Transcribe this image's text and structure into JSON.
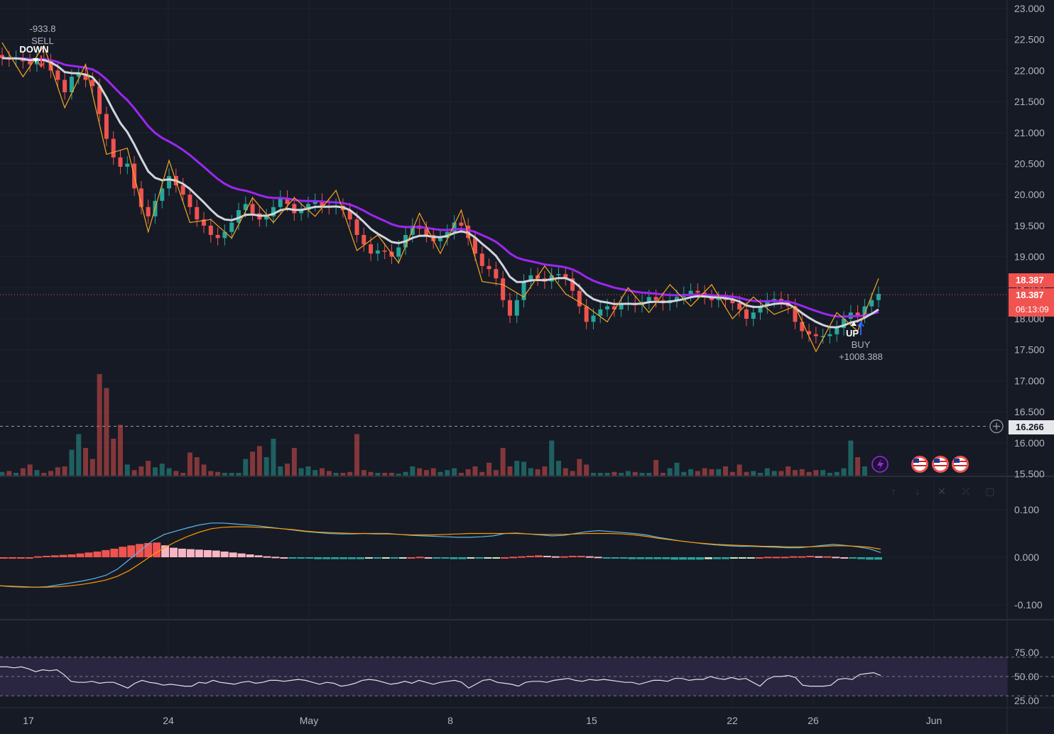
{
  "chart_data": [
    {
      "type": "candlestick",
      "title": "",
      "x_tick_labels": [
        "17",
        "24",
        "May",
        "8",
        "15",
        "22",
        "26",
        "Jun"
      ],
      "y_tick_labels": [
        "23.000",
        "22.500",
        "22.000",
        "21.500",
        "21.000",
        "20.500",
        "20.000",
        "19.500",
        "19.000",
        "18.500",
        "18.000",
        "17.500",
        "17.000",
        "16.500",
        "16.000",
        "15.500"
      ],
      "ylim": [
        15.5,
        23.0
      ],
      "last_price": "18.387",
      "last_price_repeat": "18.387",
      "countdown": "06:13:09",
      "crosshair_price": "16.266",
      "closes": [
        22.2,
        22.18,
        22.2,
        22.15,
        22.1,
        22.2,
        22.15,
        22.0,
        21.85,
        21.65,
        21.9,
        21.95,
        21.85,
        21.75,
        21.3,
        20.9,
        20.6,
        20.45,
        20.5,
        20.1,
        19.8,
        19.65,
        19.9,
        20.1,
        20.3,
        20.15,
        20.0,
        19.8,
        19.6,
        19.5,
        19.35,
        19.3,
        19.4,
        19.55,
        19.75,
        19.85,
        19.7,
        19.6,
        19.65,
        19.8,
        19.95,
        19.85,
        19.7,
        19.75,
        19.85,
        19.9,
        19.82,
        19.8,
        19.82,
        19.75,
        19.6,
        19.35,
        19.2,
        19.05,
        19.1,
        19.08,
        19.0,
        19.15,
        19.35,
        19.5,
        19.45,
        19.35,
        19.25,
        19.3,
        19.4,
        19.55,
        19.5,
        19.3,
        19.05,
        18.85,
        18.8,
        18.65,
        18.3,
        18.05,
        18.3,
        18.6,
        18.7,
        18.65,
        18.6,
        18.7,
        18.72,
        18.65,
        18.45,
        18.2,
        17.95,
        18.05,
        18.15,
        18.2,
        18.15,
        18.25,
        18.25,
        18.22,
        18.27,
        18.35,
        18.3,
        18.25,
        18.3,
        18.35,
        18.4,
        18.45,
        18.42,
        18.35,
        18.3,
        18.32,
        18.3,
        18.25,
        18.15,
        18.0,
        18.1,
        18.2,
        18.3,
        18.32,
        18.28,
        18.2,
        17.95,
        17.8,
        17.75,
        17.72,
        17.72,
        17.75,
        17.85,
        18.0,
        18.1,
        18.05,
        18.2,
        18.3,
        18.4
      ],
      "sell_signal": {
        "label": "SELL",
        "value": "-933.8",
        "marker": "DOWN"
      },
      "buy_signal": {
        "label": "BUY",
        "value": "+1008.388",
        "marker": "UP"
      },
      "event_icons": [
        "lightning-icon",
        "us-flag-icon",
        "us-flag-icon",
        "us-flag-icon"
      ],
      "colors": {
        "up": "#26a69a",
        "down": "#ef5350",
        "ema_slow": "#9c27f0",
        "ema_fast": "#d1d4dc",
        "zigzag": "#f5a623",
        "last_price_bg": "#f05350"
      }
    },
    {
      "type": "bar",
      "series_type": "volume",
      "values": [
        4,
        5,
        3,
        8,
        12,
        6,
        3,
        5,
        9,
        10,
        28,
        45,
        30,
        18,
        110,
        95,
        40,
        55,
        12,
        6,
        10,
        16,
        9,
        13,
        8,
        5,
        3,
        25,
        20,
        12,
        5,
        4,
        3,
        3,
        3,
        18,
        26,
        32,
        20,
        40,
        10,
        13,
        30,
        8,
        10,
        6,
        8,
        5,
        3,
        3,
        4,
        45,
        6,
        4,
        3,
        3,
        3,
        2,
        4,
        10,
        8,
        6,
        8,
        4,
        6,
        8,
        3,
        7,
        10,
        4,
        14,
        6,
        30,
        10,
        16,
        15,
        8,
        7,
        10,
        38,
        16,
        8,
        5,
        18,
        12,
        3,
        3,
        3,
        4,
        3,
        5,
        4,
        3,
        3,
        17,
        3,
        8,
        14,
        4,
        7,
        5,
        8,
        7,
        7,
        10,
        4,
        12,
        4,
        5,
        3,
        8,
        5,
        5,
        10,
        6,
        7,
        4,
        6,
        6,
        3,
        4,
        8,
        38,
        20,
        10
      ],
      "colors": {
        "up": "#26a69a",
        "down": "#ef5350"
      }
    },
    {
      "type": "line",
      "series_type": "MACD",
      "y_tick_labels": [
        "0.100",
        "0.000",
        "-0.100"
      ],
      "ylim": [
        -0.13,
        0.13
      ],
      "histogram": [
        0.0,
        0.0,
        0.0,
        0.0,
        0.002,
        0.003,
        0.004,
        0.005,
        0.006,
        0.008,
        0.01,
        0.012,
        0.015,
        0.018,
        0.022,
        0.025,
        0.028,
        0.03,
        0.031,
        0.025,
        0.02,
        0.018,
        0.017,
        0.016,
        0.015,
        0.014,
        0.012,
        0.01,
        0.008,
        0.006,
        0.004,
        0.002,
        0.001,
        0.0,
        -0.002,
        -0.003,
        -0.003,
        -0.004,
        -0.004,
        -0.004,
        -0.004,
        -0.004,
        -0.004,
        -0.003,
        -0.003,
        -0.002,
        -0.002,
        -0.001,
        0.0,
        0.001,
        0.0,
        -0.002,
        -0.003,
        -0.004,
        -0.004,
        -0.003,
        -0.003,
        -0.002,
        -0.001,
        0.0,
        0.001,
        0.002,
        0.003,
        0.004,
        0.003,
        0.002,
        0.002,
        0.003,
        0.003,
        0.002,
        0.001,
        -0.001,
        -0.002,
        -0.003,
        -0.004,
        -0.004,
        -0.004,
        -0.004,
        -0.004,
        -0.005,
        -0.005,
        -0.005,
        -0.005,
        -0.004,
        -0.004,
        -0.004,
        -0.003,
        -0.002,
        -0.001,
        0.0,
        0.001,
        0.001,
        0.001,
        0.002,
        0.002,
        0.003,
        0.002,
        0.002,
        0.001,
        0.0,
        -0.003,
        -0.004,
        -0.005,
        -0.005
      ],
      "macd": [
        -0.06,
        -0.062,
        -0.063,
        -0.063,
        -0.062,
        -0.058,
        -0.054,
        -0.05,
        -0.045,
        -0.038,
        -0.025,
        -0.005,
        0.015,
        0.035,
        0.048,
        0.055,
        0.062,
        0.068,
        0.072,
        0.072,
        0.07,
        0.068,
        0.066,
        0.063,
        0.06,
        0.057,
        0.054,
        0.052,
        0.05,
        0.049,
        0.049,
        0.05,
        0.05,
        0.05,
        0.048,
        0.046,
        0.045,
        0.044,
        0.043,
        0.042,
        0.042,
        0.043,
        0.045,
        0.05,
        0.051,
        0.049,
        0.047,
        0.045,
        0.046,
        0.05,
        0.054,
        0.056,
        0.054,
        0.052,
        0.05,
        0.047,
        0.042,
        0.038,
        0.034,
        0.031,
        0.028,
        0.026,
        0.024,
        0.023,
        0.023,
        0.022,
        0.021,
        0.02,
        0.02,
        0.022,
        0.025,
        0.027,
        0.025,
        0.022,
        0.018,
        0.01
      ],
      "signal": [
        -0.06,
        -0.061,
        -0.062,
        -0.063,
        -0.063,
        -0.062,
        -0.06,
        -0.057,
        -0.053,
        -0.048,
        -0.04,
        -0.028,
        -0.012,
        0.005,
        0.02,
        0.033,
        0.044,
        0.053,
        0.06,
        0.063,
        0.064,
        0.064,
        0.063,
        0.062,
        0.06,
        0.058,
        0.055,
        0.053,
        0.052,
        0.051,
        0.05,
        0.05,
        0.049,
        0.049,
        0.048,
        0.047,
        0.047,
        0.047,
        0.048,
        0.049,
        0.05,
        0.05,
        0.05,
        0.05,
        0.05,
        0.049,
        0.048,
        0.048,
        0.048,
        0.049,
        0.05,
        0.05,
        0.05,
        0.049,
        0.047,
        0.044,
        0.04,
        0.037,
        0.034,
        0.031,
        0.029,
        0.027,
        0.026,
        0.025,
        0.024,
        0.023,
        0.023,
        0.022,
        0.022,
        0.022,
        0.023,
        0.024,
        0.024,
        0.023,
        0.021,
        0.017
      ],
      "colors": {
        "macd": "#2962ff",
        "signal": "#ff9800"
      }
    },
    {
      "type": "line",
      "series_type": "RSI",
      "y_tick_labels": [
        "75.00",
        "50.00",
        "25.00"
      ],
      "ylim": [
        23,
        80
      ],
      "values": [
        60,
        60,
        59,
        60,
        58,
        55,
        57,
        56,
        57,
        52,
        45,
        44,
        44,
        45,
        43,
        44,
        44,
        41,
        38,
        43,
        46,
        44,
        43,
        41,
        42,
        41,
        40,
        40,
        44,
        43,
        46,
        44,
        43,
        42,
        44,
        45,
        43,
        44,
        46,
        46,
        45,
        46,
        47,
        46,
        44,
        42,
        44,
        43,
        40,
        41,
        43,
        46,
        47,
        46,
        44,
        42,
        43,
        45,
        43,
        46,
        44,
        42,
        44,
        45,
        46,
        44,
        38,
        42,
        46,
        47,
        44,
        43,
        42,
        40,
        44,
        45,
        45,
        44,
        46,
        47,
        48,
        46,
        45,
        47,
        46,
        47,
        46,
        45,
        44,
        44,
        42,
        44,
        46,
        46,
        45,
        48,
        48,
        46,
        47,
        47,
        50,
        48,
        47,
        49,
        47,
        48,
        44,
        40,
        47,
        50,
        50,
        51,
        49,
        41,
        40,
        40,
        40,
        41,
        47,
        48,
        47,
        52,
        53,
        54,
        51
      ],
      "colors": {
        "line": "#e0e3eb",
        "band": "#2a2540"
      }
    }
  ]
}
